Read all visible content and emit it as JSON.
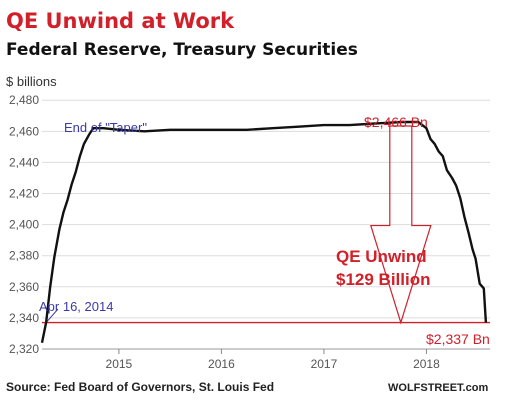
{
  "chart_data": {
    "type": "line",
    "title": "QE Unwind at Work",
    "subtitle": "Federal Reserve, Treasury Securities",
    "ylabel": "$ billions",
    "xlabel": "",
    "yticks": [
      "2,320",
      "2,340",
      "2,360",
      "2,380",
      "2,400",
      "2,420",
      "2,440",
      "2,460",
      "2,480"
    ],
    "ytick_values": [
      2320,
      2340,
      2360,
      2380,
      2400,
      2420,
      2440,
      2460,
      2480
    ],
    "xticks": [
      "2015",
      "2016",
      "2017",
      "2018"
    ],
    "xtick_values": [
      2015,
      2016,
      2017,
      2018
    ],
    "ylim": [
      2320,
      2484
    ],
    "xlim": [
      2014.25,
      2018.62
    ],
    "grid": "horizontal",
    "series": [
      {
        "values": [
          [
            2014.25,
            2324
          ],
          [
            2014.29,
            2337
          ],
          [
            2014.33,
            2360
          ],
          [
            2014.37,
            2379
          ],
          [
            2014.42,
            2397
          ],
          [
            2014.46,
            2408
          ],
          [
            2014.5,
            2416
          ],
          [
            2014.54,
            2426
          ],
          [
            2014.58,
            2434
          ],
          [
            2014.62,
            2444
          ],
          [
            2014.66,
            2452
          ],
          [
            2014.71,
            2458
          ],
          [
            2014.75,
            2462
          ],
          [
            2014.85,
            2462
          ],
          [
            2015.0,
            2461
          ],
          [
            2015.25,
            2460
          ],
          [
            2015.5,
            2461
          ],
          [
            2015.75,
            2461
          ],
          [
            2016.0,
            2461
          ],
          [
            2016.25,
            2461
          ],
          [
            2016.5,
            2462
          ],
          [
            2016.75,
            2463
          ],
          [
            2017.0,
            2464
          ],
          [
            2017.25,
            2464
          ],
          [
            2017.5,
            2465
          ],
          [
            2017.75,
            2466
          ],
          [
            2017.92,
            2466
          ],
          [
            2018.0,
            2462
          ],
          [
            2018.04,
            2455
          ],
          [
            2018.08,
            2452
          ],
          [
            2018.12,
            2447
          ],
          [
            2018.16,
            2444
          ],
          [
            2018.2,
            2435
          ],
          [
            2018.25,
            2430
          ],
          [
            2018.29,
            2425
          ],
          [
            2018.33,
            2417
          ],
          [
            2018.37,
            2405
          ],
          [
            2018.41,
            2395
          ],
          [
            2018.45,
            2384
          ],
          [
            2018.48,
            2378
          ],
          [
            2018.52,
            2362
          ],
          [
            2018.56,
            2359
          ],
          [
            2018.58,
            2337
          ]
        ]
      }
    ],
    "annotations": {
      "taper_label": "End of \"Taper\"",
      "peak_label": "$2,466 Bn",
      "unwind_line1": "QE Unwind",
      "unwind_line2": "$129 Billion",
      "start_date_label": "Apr 16, 2014",
      "end_label": "$2,337 Bn",
      "baseline_value": 2337,
      "peak_value": 2466
    },
    "source": "Source: Fed Board of Governors, St. Louis Fed",
    "credit": "WOLFSTREET.com"
  },
  "colors": {
    "title": "#d0202a",
    "subtitle": "#111111",
    "series": "#111111",
    "annotation_red": "#d0202a",
    "annotation_blue": "#3a3aa6",
    "grid": "#dddddd"
  }
}
